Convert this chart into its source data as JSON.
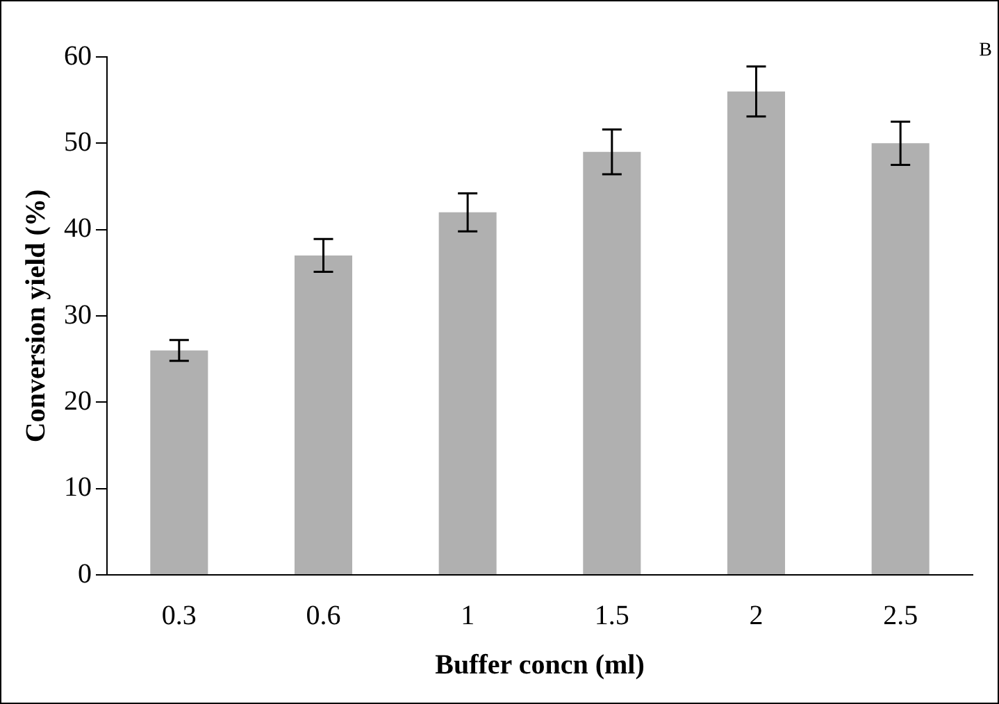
{
  "chart_data": {
    "type": "bar",
    "xlabel": "Buffer concn (ml)",
    "ylabel": "Conversion yield (%)",
    "annotations": [
      "B"
    ],
    "categories": [
      "0.3",
      "0.6",
      "1",
      "1.5",
      "2",
      "2.5"
    ],
    "values": [
      26,
      37,
      42,
      49,
      56,
      50
    ],
    "errors": [
      1.2,
      1.9,
      2.2,
      2.6,
      2.9,
      2.5
    ],
    "color": "#b0b0b0",
    "ylim": [
      0,
      60
    ],
    "yticks": [
      0,
      10,
      20,
      30,
      40,
      50,
      60
    ],
    "grid": false,
    "legend": false
  }
}
